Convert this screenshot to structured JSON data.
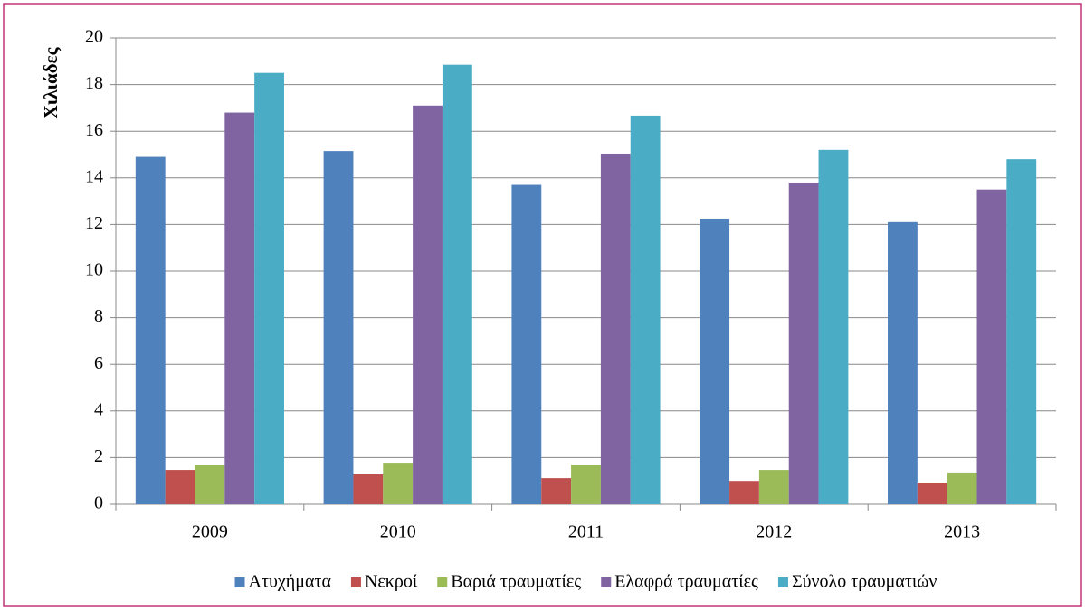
{
  "chart_data": {
    "type": "bar",
    "y_label": "Χιλιάδες",
    "categories": [
      "2009",
      "2010",
      "2011",
      "2012",
      "2013"
    ],
    "series": [
      {
        "name": "Ατυχήματα",
        "color": "#4f81bd",
        "values": [
          14.9,
          15.15,
          13.7,
          12.25,
          12.1
        ]
      },
      {
        "name": "Νεκροί",
        "color": "#c0504d",
        "values": [
          1.47,
          1.28,
          1.12,
          1.0,
          0.93
        ]
      },
      {
        "name": "Βαριά τραυματίες",
        "color": "#9bbb59",
        "values": [
          1.7,
          1.78,
          1.7,
          1.47,
          1.36
        ]
      },
      {
        "name": "Ελαφρά τραυματίες",
        "color": "#8064a2",
        "values": [
          16.8,
          17.1,
          15.04,
          13.8,
          13.5
        ]
      },
      {
        "name": "Σύνολο τραυματιών",
        "color": "#4bacc6",
        "values": [
          18.5,
          18.85,
          16.67,
          15.2,
          14.8
        ]
      }
    ],
    "ylim": [
      0,
      20
    ],
    "yticks": [
      0,
      2,
      4,
      6,
      8,
      10,
      12,
      14,
      16,
      18,
      20
    ],
    "grid": true,
    "legend": "bottom"
  }
}
